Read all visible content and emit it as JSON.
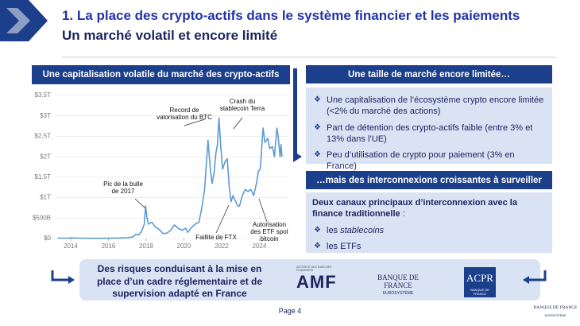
{
  "slide": {
    "title": "1. La place des crypto-actifs dans le système financier et les paiements",
    "subtitle": "Un marché volatil et encore limité",
    "right": {
      "header1": "Une taille de marché encore limitée…",
      "bullets": [
        "Une capitalisation de l’écosystème crypto encore limitée (<2% du marché des actions)",
        "Part de détention des crypto-actifs faible (entre 3% et 13% dans l’UE)",
        "Peu d’utilisation de crypto pour paiement (3% en France)"
      ],
      "header2": "…mais des interconnexions croissantes à surveiller",
      "lead_bold": "Deux canaux principaux d’interconnexion avec la finance traditionnelle",
      "lead_rest": " :",
      "channels": [
        {
          "text": "les",
          "italic": "stablecoins"
        },
        {
          "text": "les ETFs"
        }
      ]
    },
    "bottom": {
      "text": "Des risques conduisant à la mise en place d’un cadre réglementaire et de supervision adapté en France",
      "logos": {
        "amf_caption": "AUTORITÉ DES MARCHÉS FINANCIERS",
        "amf": "AMF",
        "bdf": "BANQUE DE FRANCE",
        "bdf_sub": "EUROSYSTÈME",
        "acpr": "ACPR",
        "acpr_sub": "BANQUE DE FRANCE"
      }
    },
    "footer": {
      "page": "Page 4",
      "logo": "BANQUE DE FRANCE",
      "logo_sub": "EUROSYSTÈME"
    }
  },
  "chart_data": {
    "type": "line",
    "title": "Une capitalisation volatile du marché des crypto-actifs",
    "color": "#5b9bd5",
    "x": [
      2013.3,
      2013.9,
      2014.0,
      2014.5,
      2015.0,
      2015.5,
      2016.0,
      2016.5,
      2017.0,
      2017.3,
      2017.45,
      2017.6,
      2017.75,
      2017.9,
      2017.97,
      2018.05,
      2018.12,
      2018.3,
      2018.5,
      2018.7,
      2018.9,
      2019.1,
      2019.3,
      2019.5,
      2019.7,
      2019.9,
      2020.1,
      2020.2,
      2020.4,
      2020.6,
      2020.8,
      2020.95,
      2021.1,
      2021.28,
      2021.4,
      2021.5,
      2021.6,
      2021.7,
      2021.78,
      2021.86,
      2021.95,
      2022.05,
      2022.2,
      2022.3,
      2022.4,
      2022.5,
      2022.6,
      2022.7,
      2022.85,
      2022.95,
      2023.1,
      2023.25,
      2023.4,
      2023.55,
      2023.7,
      2023.85,
      2023.95,
      2024.05,
      2024.2,
      2024.3,
      2024.45,
      2024.55,
      2024.7,
      2024.8,
      2024.93,
      2025.0,
      2025.1,
      2025.15,
      2025.2
    ],
    "values": [
      0.01,
      0.012,
      0.015,
      0.01,
      0.005,
      0.005,
      0.007,
      0.012,
      0.02,
      0.04,
      0.1,
      0.09,
      0.17,
      0.35,
      0.8,
      0.5,
      0.35,
      0.4,
      0.28,
      0.22,
      0.12,
      0.13,
      0.2,
      0.33,
      0.25,
      0.2,
      0.25,
      0.15,
      0.27,
      0.35,
      0.4,
      0.75,
      1.2,
      2.4,
      1.7,
      1.35,
      1.6,
      2.1,
      2.3,
      2.95,
      2.3,
      1.7,
      1.9,
      1.95,
      1.3,
      0.9,
      1.05,
      0.95,
      0.8,
      0.8,
      1.05,
      1.2,
      1.15,
      1.2,
      1.05,
      1.35,
      1.65,
      1.7,
      2.7,
      2.35,
      2.45,
      2.2,
      2.25,
      2.0,
      2.7,
      2.5,
      2.0,
      2.3,
      2.0
    ],
    "xlim": [
      2013.2,
      2025.5
    ],
    "xticks": [
      2014,
      2016,
      2018,
      2020,
      2022,
      2024
    ],
    "ylim": [
      0,
      3.5
    ],
    "yticks": [
      {
        "value": 0,
        "label": "$0"
      },
      {
        "value": 0.5,
        "label": "$500B"
      },
      {
        "value": 1,
        "label": "$1T"
      },
      {
        "value": 1.5,
        "label": "$1.5T"
      },
      {
        "value": 2,
        "label": "$2T"
      },
      {
        "value": 2.5,
        "label": "$2.5T"
      },
      {
        "value": 3,
        "label": "$3T"
      },
      {
        "value": 3.5,
        "label": "$3.5T"
      }
    ],
    "grid": true,
    "annotations": [
      "Record de valorisation du BTC",
      "Crash du stablecoin Terra",
      "Pic de la bulle de 2017",
      "Faillite de FTX",
      "Autorisation des ETF spot bitcoin"
    ]
  }
}
